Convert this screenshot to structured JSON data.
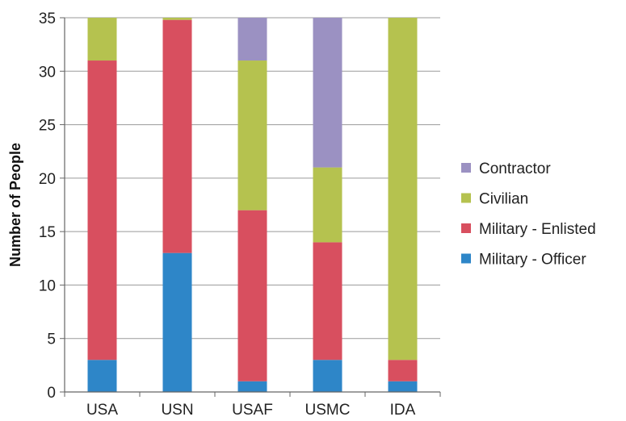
{
  "chart_data": {
    "type": "bar",
    "stacked": true,
    "categories": [
      "USA",
      "USN",
      "USAF",
      "USMC",
      "IDA"
    ],
    "ylabel": "Number of People",
    "xlabel": "",
    "ylim": [
      0,
      35
    ],
    "yticks": [
      0,
      5,
      10,
      15,
      20,
      25,
      30,
      35
    ],
    "grid": true,
    "legend_position": "right",
    "series": [
      {
        "name": "Military - Officer",
        "color": "#2e86c8",
        "values": [
          3,
          13,
          1,
          3,
          1
        ]
      },
      {
        "name": "Military - Enlisted",
        "color": "#d84f5f",
        "values": [
          28,
          21.8,
          16,
          11,
          2
        ]
      },
      {
        "name": "Civilian",
        "color": "#b5c24f",
        "values": [
          4,
          0.2,
          14,
          7,
          32
        ]
      },
      {
        "name": "Contractor",
        "color": "#9b91c2",
        "values": [
          0,
          0,
          4,
          14,
          0
        ]
      }
    ],
    "legend_order": [
      "Contractor",
      "Civilian",
      "Military - Enlisted",
      "Military - Officer"
    ]
  }
}
